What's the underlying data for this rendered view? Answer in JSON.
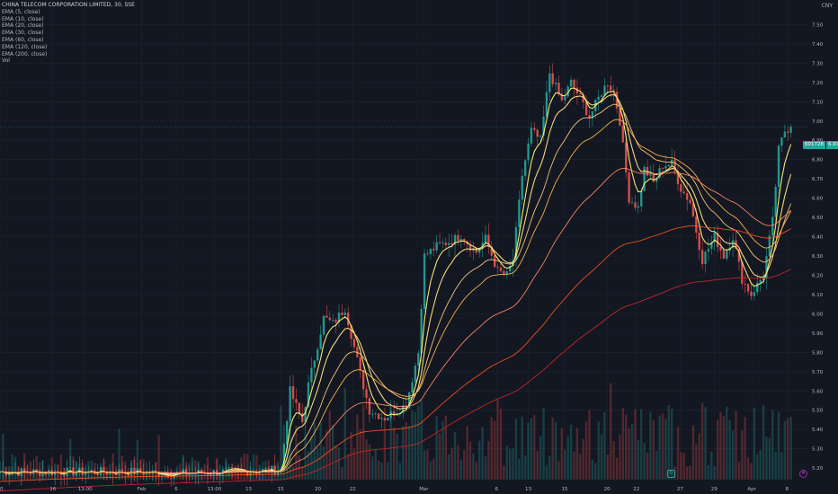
{
  "header": {
    "title": "CHINA TELECOM CORPORATION LIMITED, 30, SSE",
    "currency": "CNY",
    "indicators": [
      "EMA (5, close)",
      "EMA (10, close)",
      "EMA (20, close)",
      "EMA (30, close)",
      "EMA (60, close)",
      "EMA (120, close)",
      "EMA (200, close)",
      "Vol"
    ]
  },
  "price_tag": {
    "symbol": "601728",
    "value": "6.97"
  },
  "markers": {
    "dividend": "D",
    "event": "4"
  },
  "colors": {
    "background": "#131722",
    "grid": "#1e222d",
    "text": "#b2b5be",
    "up": "#26a69a",
    "down": "#ef5350",
    "last_price": "#26a69a",
    "ema": [
      "#fff176",
      "#ffe082",
      "#ffcc80",
      "#ffb74d",
      "#ff8a65",
      "#f4511e",
      "#c62828"
    ]
  },
  "chart_data": {
    "type": "line",
    "title": "CHINA TELECOM CORPORATION LIMITED, 30, SSE",
    "y_axis": {
      "ticks": [
        "7.50",
        "7.40",
        "7.30",
        "7.20",
        "7.10",
        "7.00",
        "6.90",
        "6.80",
        "6.70",
        "6.60",
        "6.50",
        "6.40",
        "6.30",
        "6.20",
        "6.10",
        "6.00",
        "5.90",
        "5.80",
        "5.70",
        "5.60",
        "5.50",
        "5.40",
        "5.30",
        "5.20"
      ],
      "range": [
        5.14,
        7.6
      ]
    },
    "x_axis": {
      "ticks": [
        "10",
        "16",
        "13:00",
        "Feb",
        "6",
        "13:00",
        "13",
        "15",
        "20",
        "22",
        "Mar",
        "6",
        "13",
        "15",
        "20",
        "22",
        "27",
        "29",
        "Apr",
        "8"
      ],
      "tick_x_index": [
        0.0,
        17.3,
        27.9,
        46.4,
        57.7,
        70.2,
        81.4,
        91.9,
        104.1,
        115.5,
        138.8,
        162.6,
        173.0,
        184.9,
        198.8,
        208.4,
        222.7,
        233.9,
        246.2,
        257.7
      ],
      "range_index": [
        0,
        265
      ]
    },
    "last_price": 6.97,
    "price_anchors": [
      [
        0,
        5.18
      ],
      [
        45,
        5.18
      ],
      [
        55,
        5.17
      ],
      [
        92,
        5.19
      ],
      [
        95,
        5.6
      ],
      [
        99,
        5.44
      ],
      [
        101,
        5.63
      ],
      [
        106,
        5.98
      ],
      [
        109,
        5.95
      ],
      [
        113,
        6.03
      ],
      [
        118,
        5.69
      ],
      [
        121,
        5.5
      ],
      [
        126,
        5.46
      ],
      [
        129,
        5.49
      ],
      [
        133,
        5.53
      ],
      [
        137,
        5.8
      ],
      [
        139,
        6.3
      ],
      [
        143,
        6.35
      ],
      [
        148,
        6.38
      ],
      [
        151,
        6.41
      ],
      [
        154,
        6.35
      ],
      [
        156,
        6.32
      ],
      [
        159,
        6.39
      ],
      [
        163,
        6.22
      ],
      [
        166,
        6.2
      ],
      [
        168,
        6.28
      ],
      [
        171,
        6.72
      ],
      [
        174,
        6.95
      ],
      [
        177,
        6.9
      ],
      [
        180,
        7.25
      ],
      [
        184,
        7.1
      ],
      [
        187,
        7.2
      ],
      [
        190,
        7.12
      ],
      [
        193,
        7.02
      ],
      [
        197,
        7.15
      ],
      [
        199,
        7.2
      ],
      [
        201,
        7.15
      ],
      [
        203,
        7.0
      ],
      [
        206,
        6.6
      ],
      [
        209,
        6.55
      ],
      [
        211,
        6.75
      ],
      [
        214,
        6.68
      ],
      [
        217,
        6.77
      ],
      [
        220,
        6.78
      ],
      [
        223,
        6.65
      ],
      [
        226,
        6.58
      ],
      [
        230,
        6.28
      ],
      [
        234,
        6.4
      ],
      [
        237,
        6.3
      ],
      [
        240,
        6.4
      ],
      [
        243,
        6.18
      ],
      [
        246,
        6.1
      ],
      [
        250,
        6.2
      ],
      [
        253,
        6.48
      ],
      [
        255,
        6.85
      ],
      [
        257,
        6.95
      ],
      [
        259,
        6.97
      ]
    ],
    "ema_periods": [
      5,
      10,
      20,
      30,
      60,
      120,
      200
    ],
    "series": [
      {
        "name": "EMA (5, close)"
      },
      {
        "name": "EMA (10, close)"
      },
      {
        "name": "EMA (20, close)"
      },
      {
        "name": "EMA (30, close)"
      },
      {
        "name": "EMA (60, close)"
      },
      {
        "name": "EMA (120, close)"
      },
      {
        "name": "EMA (200, close)"
      },
      {
        "name": "Vol"
      }
    ],
    "volume_hint": "low volume bars along bottom; larger cluster near x index 92-265",
    "grid": true
  }
}
